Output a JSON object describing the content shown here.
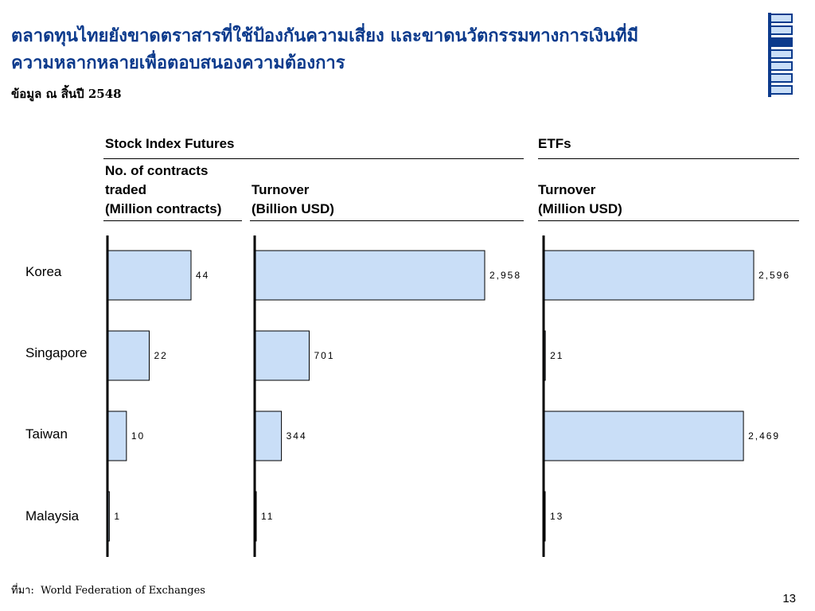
{
  "page": {
    "title_line1": "ตลาดทุนไทยยังขาดตราสารที่ใช้ป้องกันความเสี่ยง และขาดนวัตกรรมทางการเงินที่มี",
    "title_line2": "ความหลากหลายเพื่อตอบสนองความต้องการ",
    "subtitle": "ข้อมูล ณ สิ้นปี 2548",
    "source_label": "ที่มา:",
    "source_text": "World Federation of Exchanges",
    "page_number": "13"
  },
  "headers": {
    "group1": "Stock Index Futures",
    "group2": "ETFs",
    "col1_line1": "No. of contracts",
    "col1_line2": "traded",
    "col1_line3": "(Million contracts)",
    "col2_line1": "Turnover",
    "col2_line2": "(Billion USD)",
    "col3_line1": "Turnover",
    "col3_line2": "(Million USD)"
  },
  "chart_data": [
    {
      "type": "bar",
      "orientation": "horizontal",
      "title": "No. of contracts traded (Million contracts)",
      "categories": [
        "Korea",
        "Singapore",
        "Taiwan",
        "Malaysia"
      ],
      "values": [
        44,
        22,
        10,
        1
      ],
      "value_labels": [
        "44",
        "22",
        "10",
        "1"
      ]
    },
    {
      "type": "bar",
      "orientation": "horizontal",
      "title": "Turnover (Billion USD)",
      "categories": [
        "Korea",
        "Singapore",
        "Taiwan",
        "Malaysia"
      ],
      "values": [
        2958,
        701,
        344,
        11
      ],
      "value_labels": [
        "2,958",
        "701",
        "344",
        "11"
      ]
    },
    {
      "type": "bar",
      "orientation": "horizontal",
      "title": "Turnover (Million USD)",
      "categories": [
        "Korea",
        "Singapore",
        "Taiwan",
        "Malaysia"
      ],
      "values": [
        2596,
        21,
        2469,
        13
      ],
      "value_labels": [
        "2,596",
        "21",
        "2,469",
        "13"
      ]
    }
  ],
  "colors": {
    "bar_fill": "#c9def7",
    "bar_stroke": "#000000",
    "title": "#0b3a8c",
    "logo_dark": "#0b3a8c",
    "logo_light": "#c9def7"
  }
}
